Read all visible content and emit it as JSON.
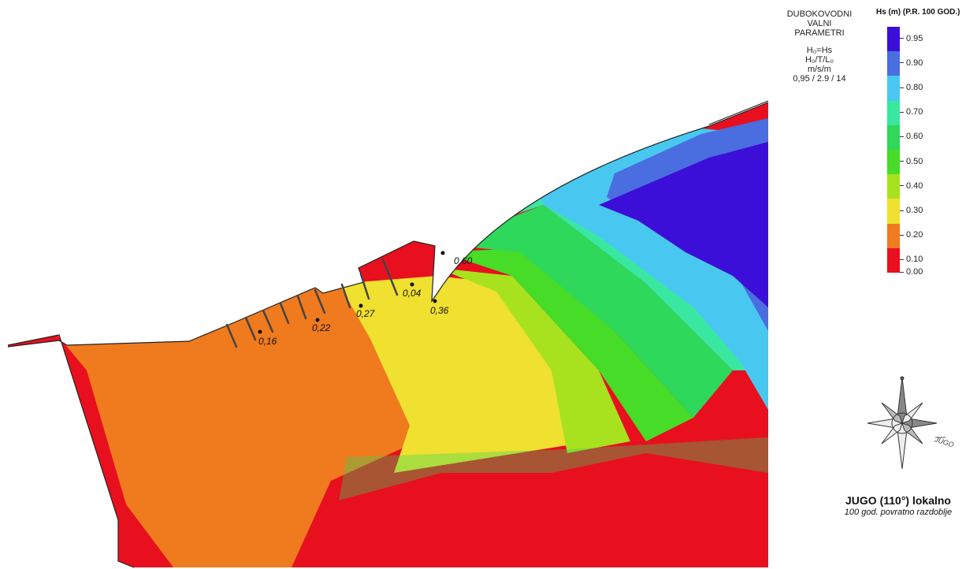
{
  "info": {
    "title_lines": [
      "DUBOKOVODNI",
      "VALNI",
      "PARAMETRI"
    ],
    "param_lines": [
      "H₀=Hs",
      "H₀/T/L₀",
      "m/s/m",
      "0,95 / 2.9 / 14"
    ]
  },
  "legend": {
    "title": "Hs (m) (P.R. 100 GOD.)",
    "entries": [
      {
        "label": "0.95",
        "color": "#3c0fd8"
      },
      {
        "label": "0.90",
        "color": "#4a6ee0"
      },
      {
        "label": "0.80",
        "color": "#48c8f0"
      },
      {
        "label": "0.70",
        "color": "#38e8a0"
      },
      {
        "label": "0.60",
        "color": "#2ed85a"
      },
      {
        "label": "0.50",
        "color": "#46dc28"
      },
      {
        "label": "0.40",
        "color": "#a8e21e"
      },
      {
        "label": "0.30",
        "color": "#f0e030"
      },
      {
        "label": "0.20",
        "color": "#f07a1e"
      },
      {
        "label": "0.10",
        "color": "#e8101e"
      }
    ],
    "bottom_label": "0.00"
  },
  "points": [
    {
      "label": "0,16"
    },
    {
      "label": "0,22"
    },
    {
      "label": "0,27"
    },
    {
      "label": "0,04"
    },
    {
      "label": "0,36"
    },
    {
      "label": "0,60"
    }
  ],
  "compass": {
    "icon": "compass-rose-icon",
    "wave_label": "JUGO"
  },
  "caption": {
    "title": "JUGO (110°) lokalno",
    "subtitle": "100 god. povratno razdoblje"
  }
}
